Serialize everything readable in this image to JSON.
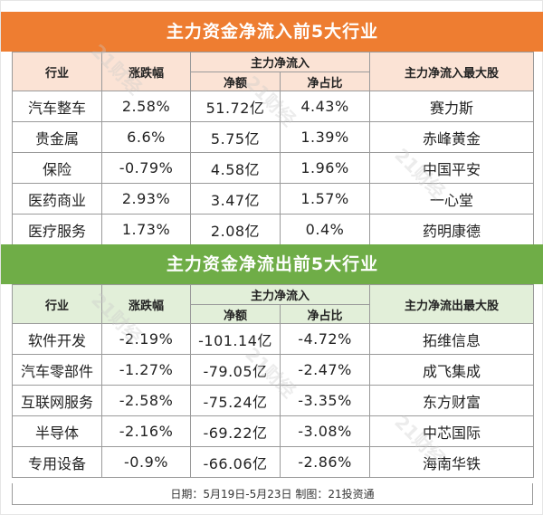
{
  "inflow": {
    "title": "主力资金净流入前5大行业",
    "headers": {
      "industry": "行业",
      "change": "涨跌幅",
      "main_net": "主力净流入",
      "net_amount": "净额",
      "net_ratio": "净占比",
      "top_stock": "主力净流入最大股"
    },
    "rows": [
      {
        "industry": "汽车整车",
        "change": "2.58%",
        "net_amount": "51.72亿",
        "net_ratio": "4.43%",
        "top_stock": "赛力斯"
      },
      {
        "industry": "贵金属",
        "change": "6.6%",
        "net_amount": "5.75亿",
        "net_ratio": "1.39%",
        "top_stock": "赤峰黄金"
      },
      {
        "industry": "保险",
        "change": "-0.79%",
        "net_amount": "4.58亿",
        "net_ratio": "1.96%",
        "top_stock": "中国平安"
      },
      {
        "industry": "医药商业",
        "change": "2.93%",
        "net_amount": "3.47亿",
        "net_ratio": "1.57%",
        "top_stock": "一心堂"
      },
      {
        "industry": "医疗服务",
        "change": "1.73%",
        "net_amount": "2.08亿",
        "net_ratio": "0.4%",
        "top_stock": "药明康德"
      }
    ]
  },
  "outflow": {
    "title": "主力资金净流出前5大行业",
    "headers": {
      "industry": "行业",
      "change": "涨跌幅",
      "main_net": "主力净流入",
      "net_amount": "净额",
      "net_ratio": "净占比",
      "top_stock": "主力净流出最大股"
    },
    "rows": [
      {
        "industry": "软件开发",
        "change": "-2.19%",
        "net_amount": "-101.14亿",
        "net_ratio": "-4.72%",
        "top_stock": "拓维信息"
      },
      {
        "industry": "汽车零部件",
        "change": "-1.27%",
        "net_amount": "-79.05亿",
        "net_ratio": "-2.47%",
        "top_stock": "成飞集成"
      },
      {
        "industry": "互联网服务",
        "change": "-2.58%",
        "net_amount": "-75.24亿",
        "net_ratio": "-3.35%",
        "top_stock": "东方财富"
      },
      {
        "industry": "半导体",
        "change": "-2.16%",
        "net_amount": "-69.22亿",
        "net_ratio": "-3.08%",
        "top_stock": "中芯国际"
      },
      {
        "industry": "专用设备",
        "change": "-0.9%",
        "net_amount": "-66.06亿",
        "net_ratio": "-2.86%",
        "top_stock": "海南华铁"
      }
    ]
  },
  "footer": "日期：5月19日-5月23日 制图：21投资通",
  "watermark": "21财经",
  "colors": {
    "orange": "#ee7d31",
    "green": "#6fad47",
    "orange_light": "#fbe3d5",
    "green_light": "#e2efd9"
  }
}
